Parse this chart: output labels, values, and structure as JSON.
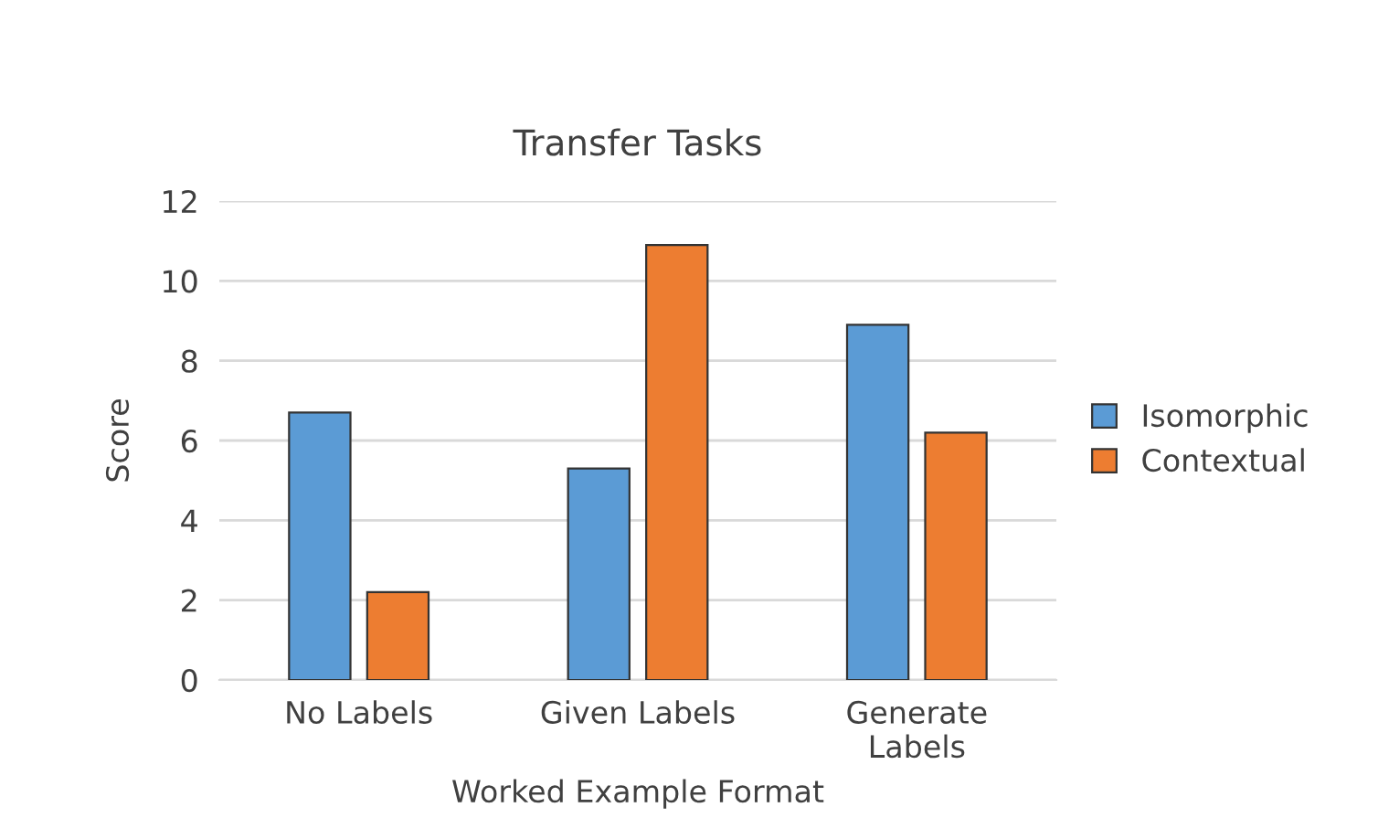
{
  "chart_data": {
    "type": "bar",
    "title": "Transfer Tasks",
    "xlabel": "Worked Example Format",
    "ylabel": "Score",
    "categories": [
      "No Labels",
      "Given Labels",
      "Generate\nLabels"
    ],
    "series": [
      {
        "name": "Isomorphic",
        "color": "#5b9bd5",
        "values": [
          6.7,
          5.3,
          8.9
        ]
      },
      {
        "name": "Contextual",
        "color": "#ed7d31",
        "values": [
          2.2,
          10.9,
          6.2
        ]
      }
    ],
    "ylim": [
      0,
      12
    ],
    "yticks": [
      0,
      2,
      4,
      6,
      8,
      10,
      12
    ],
    "grid": "y",
    "legend": "right"
  }
}
